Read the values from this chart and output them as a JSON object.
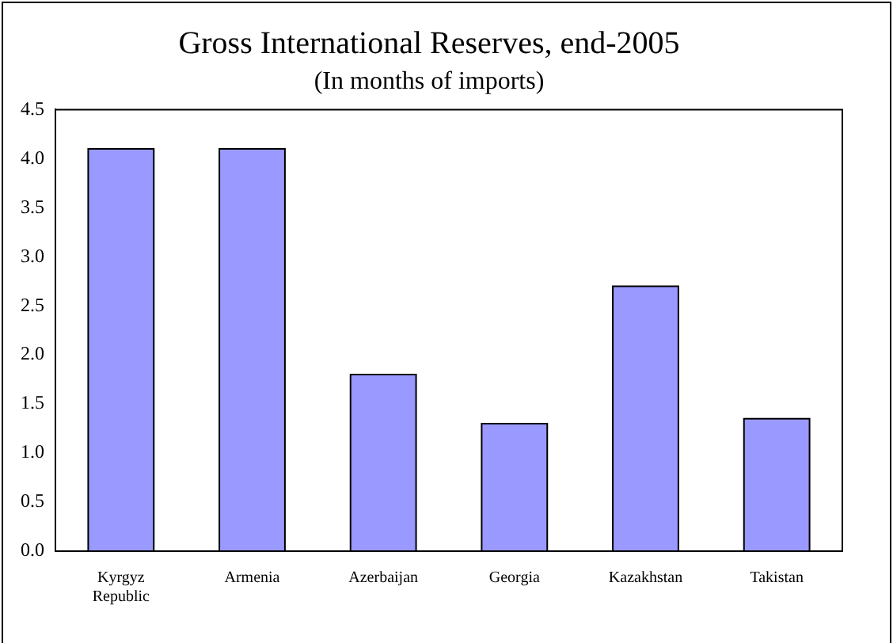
{
  "chart_data": {
    "type": "bar",
    "title": "Gross International Reserves, end-2005",
    "subtitle": "(In months of imports)",
    "categories": [
      "Kyrgyz Republic",
      "Armenia",
      "Azerbaijan",
      "Georgia",
      "Kazakhstan",
      "Takistan"
    ],
    "values": [
      4.1,
      4.1,
      1.8,
      1.3,
      2.7,
      1.35
    ],
    "color": "#9999ff",
    "ylim": [
      0,
      4.5
    ],
    "yticks": [
      {
        "value": 0,
        "label": "0.0"
      },
      0.5,
      {
        "value": 1,
        "label": "1.0"
      },
      1.5,
      {
        "value": 2,
        "label": "2.0"
      },
      2.5,
      {
        "value": 3,
        "label": "3.0"
      },
      3.5,
      {
        "value": 4,
        "label": "4.0"
      },
      4.5
    ],
    "grid": false
  }
}
